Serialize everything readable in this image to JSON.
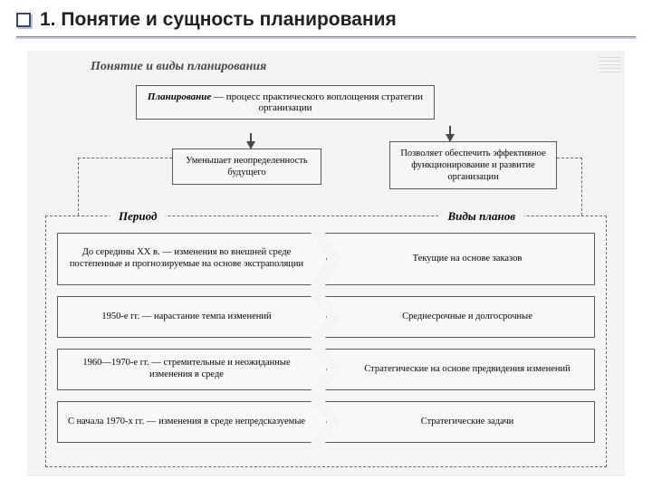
{
  "header": {
    "title": "1. Понятие и сущность планирования"
  },
  "subtitle": "Понятие и виды планирования",
  "definition": {
    "term": "Планирование",
    "text": " — процесс практического воплощения стратегии организации"
  },
  "effects": {
    "left": "Уменьшает неопределенность будущего",
    "right": "Позволяет обеспечить эффективное функционирование и развитие организации"
  },
  "table": {
    "col_left": "Период",
    "col_right": "Виды планов",
    "rows": [
      {
        "period": "До середины XX в. — изменения во внешней среде постепенные и прогнозируемые на основе экстраполяции",
        "plan": "Текущие на основе заказов"
      },
      {
        "period": "1950-е гг. — нарастание темпа изменений",
        "plan": "Среднесрочные и долгосрочные"
      },
      {
        "period": "1960—1970-е гг. — стремительные и неожиданные изменения в среде",
        "plan": "Стратегические на основе предвидения изменений"
      },
      {
        "period": "С начала 1970-х гг. — изменения в среде непредсказуемые",
        "plan": "Стратегические задачи"
      }
    ]
  },
  "colors": {
    "page_bg": "#ffffff",
    "scan_bg": "#f2f2f2",
    "box_border": "#555555",
    "dashed_border": "#666666",
    "title_color": "#222222",
    "accent_square": "#3b4a72"
  }
}
